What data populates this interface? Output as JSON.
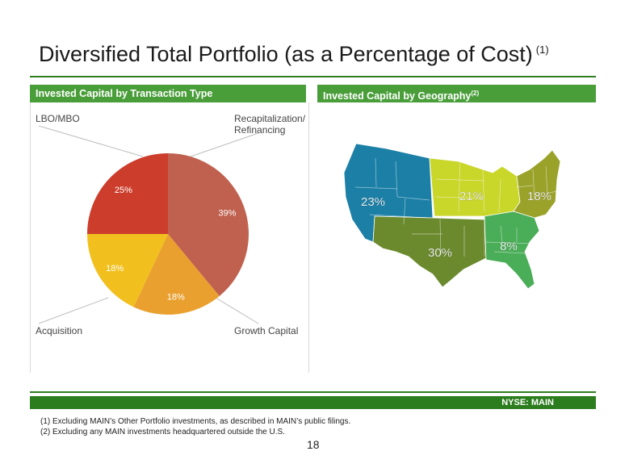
{
  "slide": {
    "title": "Diversified Total Portfolio (as a Percentage of Cost)",
    "title_note": "(1)",
    "page_number": "18"
  },
  "left_panel": {
    "header": "Invested Capital by Transaction Type",
    "corner_labels": {
      "top_left": "LBO/MBO",
      "top_right_line1": "Recapitalization/",
      "top_right_line2": "Refinancing",
      "bottom_left": "Acquisition",
      "bottom_right": "Growth Capital"
    }
  },
  "right_panel": {
    "header": "Invested Capital by Geography",
    "header_note": "(2)"
  },
  "footer": {
    "ticker": "NYSE:  MAIN",
    "notes": [
      "(1)   Excluding MAIN’s Other Portfolio investments, as described in MAIN’s public filings.",
      "(2)   Excluding any MAIN investments headquartered outside the U.S."
    ]
  },
  "chart_data": [
    {
      "type": "pie",
      "title": "Invested Capital by Transaction Type",
      "categories": [
        "Recapitalization/Refinancing",
        "Growth Capital",
        "Acquisition",
        "LBO/MBO"
      ],
      "values": [
        39,
        18,
        18,
        25
      ],
      "labels": [
        "39%",
        "18%",
        "18%",
        "25%"
      ],
      "colors": [
        "#c0614f",
        "#e9a02f",
        "#f2c01e",
        "#cc3d2c"
      ],
      "start_angle_deg": 0,
      "direction": "clockwise"
    },
    {
      "type": "map",
      "title": "Invested Capital by Geography",
      "regions": [
        {
          "label": "23%",
          "value": 23,
          "color": "#1b7fa6"
        },
        {
          "label": "21%",
          "value": 21,
          "color": "#c9d62a"
        },
        {
          "label": "18%",
          "value": 18,
          "color": "#9aa22a"
        },
        {
          "label": "30%",
          "value": 30,
          "color": "#6b8a2e"
        },
        {
          "label": "8%",
          "value": 8,
          "color": "#4aad57"
        }
      ]
    }
  ]
}
